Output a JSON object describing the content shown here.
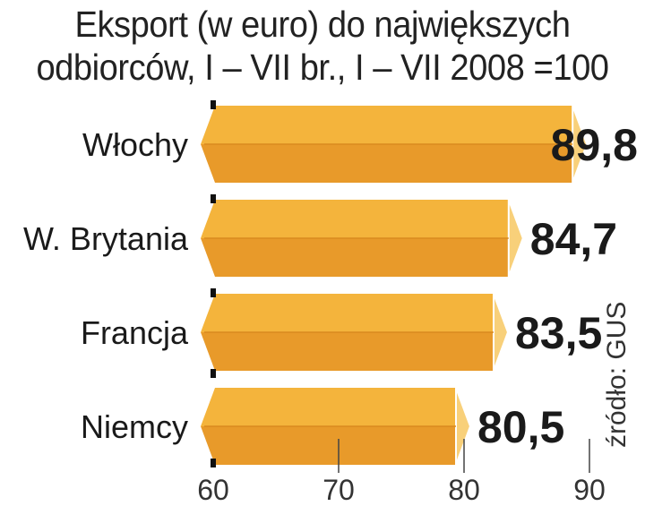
{
  "chart_data": {
    "type": "bar",
    "orientation": "horizontal",
    "title_lines": [
      "Eksport (w euro) do największych",
      "odbiorców, I – VII br., I – VII 2008 =100"
    ],
    "categories": [
      "Włochy",
      "W. Brytania",
      "Francja",
      "Niemcy"
    ],
    "values": [
      89.8,
      84.7,
      83.5,
      80.5
    ],
    "value_labels": [
      "89,8",
      "84,7",
      "83,5",
      "80,5"
    ],
    "xlim": [
      60,
      90
    ],
    "xticks": [
      "60",
      "70",
      "80",
      "90"
    ],
    "source": "źródło: GUS",
    "colors": {
      "bar_top": "#f4b43c",
      "bar_bottom": "#e89a2a",
      "bar_end": "#f8d07a",
      "bar_edge": "#ffffff"
    }
  }
}
